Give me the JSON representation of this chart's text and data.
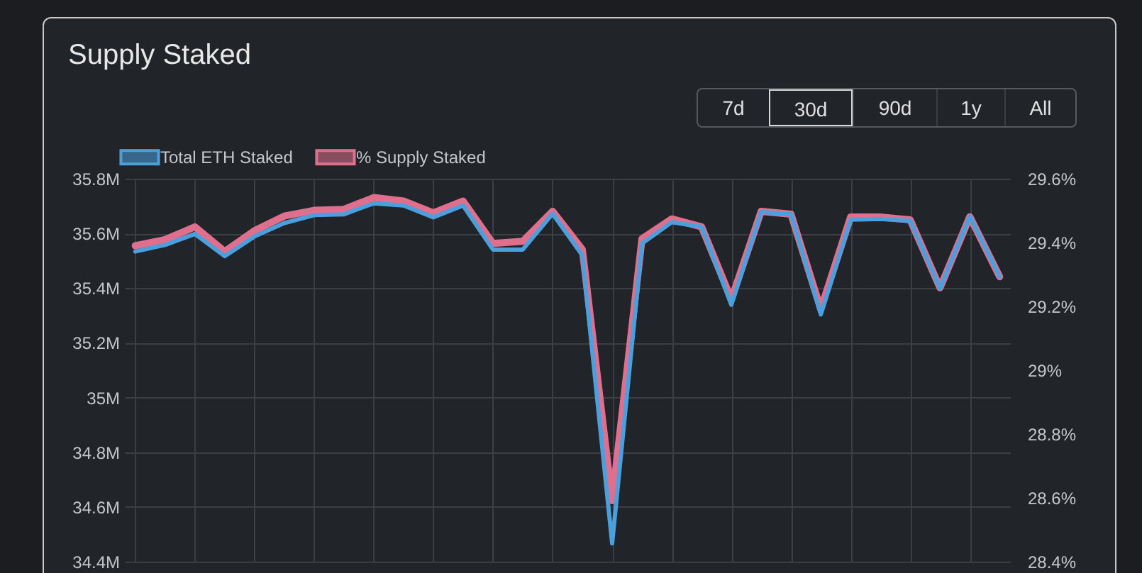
{
  "chart_data": {
    "type": "line",
    "title": "Supply Staked",
    "categories": [
      null,
      null,
      null,
      null,
      null,
      null,
      null,
      null,
      null,
      null,
      null,
      null,
      null,
      null,
      null,
      null,
      null,
      null,
      null,
      null,
      null,
      null,
      null,
      null,
      null,
      null,
      null,
      null,
      null,
      null
    ],
    "series": [
      {
        "name": "Total ETH Staked",
        "color": "#4a9fdc",
        "values": [
          35534000,
          35558000,
          35598000,
          35517000,
          35589000,
          35638000,
          35667000,
          35670000,
          35710000,
          35702000,
          35659000,
          35702000,
          35541000,
          35541000,
          35672000,
          35520000,
          34467000,
          35563000,
          35641000,
          35624000,
          35339000,
          35679000,
          35670000,
          35304000,
          35650000,
          35653000,
          35646000,
          35399000,
          35662000,
          35442000
        ]
      },
      {
        "name": "% Supply Staked",
        "color": "#df6f8d",
        "axis": "y2",
        "values": [
          29.39,
          29.409,
          29.449,
          29.372,
          29.437,
          29.483,
          29.501,
          29.504,
          29.541,
          29.53,
          29.493,
          29.53,
          29.397,
          29.404,
          29.498,
          29.378,
          28.591,
          29.412,
          29.474,
          29.449,
          29.222,
          29.498,
          29.489,
          29.191,
          29.48,
          29.48,
          29.471,
          29.258,
          29.481,
          29.293
        ]
      }
    ],
    "ylim": [
      34400000,
      35800000
    ],
    "yticks": [
      {
        "value": 34400000,
        "label": "34.4M"
      },
      {
        "value": 34600000,
        "label": "34.6M"
      },
      {
        "value": 34800000,
        "label": "34.8M"
      },
      {
        "value": 35000000,
        "label": "35M"
      },
      {
        "value": 35200000,
        "label": "35.2M"
      },
      {
        "value": 35400000,
        "label": "35.4M"
      },
      {
        "value": 35600000,
        "label": "35.6M"
      },
      {
        "value": 35800000,
        "label": "35.8M"
      }
    ],
    "y2lim": [
      28.4,
      29.6
    ],
    "y2ticks": [
      {
        "value": 28.4,
        "label": "28.4%"
      },
      {
        "value": 28.6,
        "label": "28.6%"
      },
      {
        "value": 28.8,
        "label": "28.8%"
      },
      {
        "value": 29,
        "label": "29%"
      },
      {
        "value": 29.2,
        "label": "29.2%"
      },
      {
        "value": 29.4,
        "label": "29.4%"
      },
      {
        "value": 29.6,
        "label": "29.6%"
      }
    ],
    "grid": true,
    "legend": "top",
    "marker": "none",
    "line_style": "solid",
    "annotations": [
      "7d",
      "30d",
      "90d",
      "1y",
      "All"
    ]
  }
}
